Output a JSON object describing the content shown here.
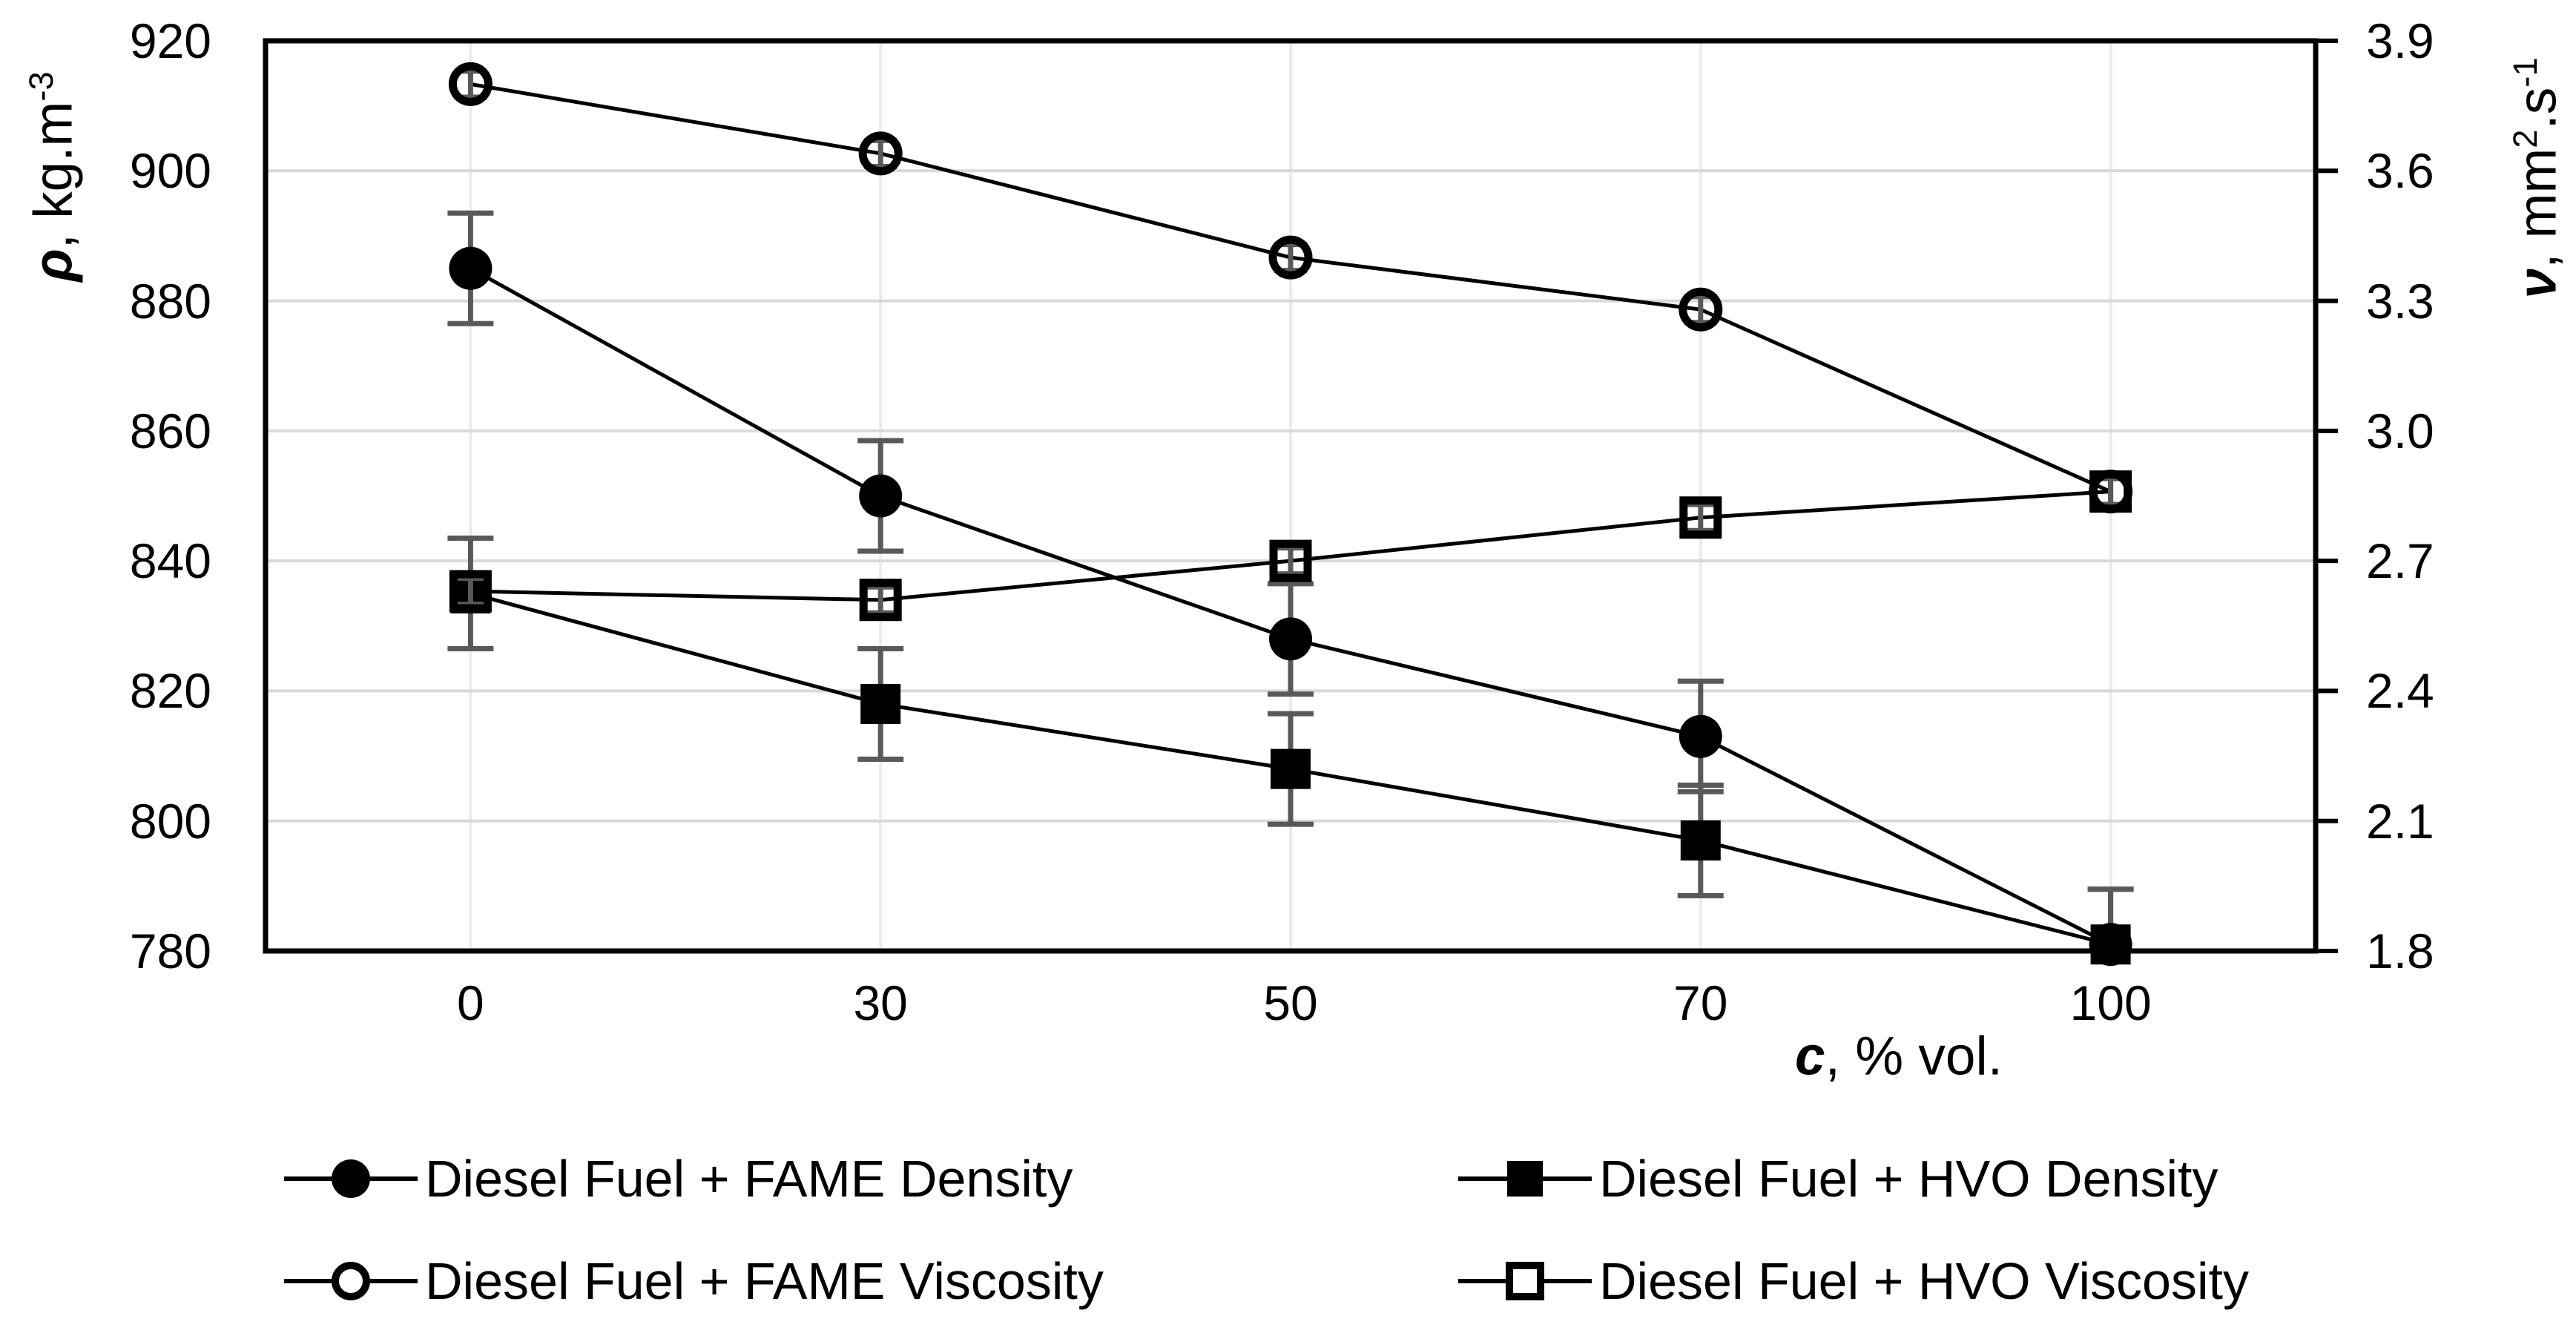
{
  "colors": {
    "series": "#000000",
    "frame": "#000000",
    "gridline_h": "#d9d9d9",
    "gridline_v": "#ebebeb",
    "error_bar": "#595959",
    "text": "#000000",
    "background": "#ffffff"
  },
  "chart_data": {
    "type": "line",
    "categories": [
      0,
      30,
      50,
      70,
      100
    ],
    "x_axis": {
      "title_symbol": "c",
      "title_rest": ", % vol.",
      "tick_labels": [
        "0",
        "30",
        "50",
        "70",
        "100"
      ]
    },
    "left_axis": {
      "title_symbol": "ρ",
      "title_rest": ", kg.m",
      "title_sup": "-3",
      "ticks": [
        "920",
        "900",
        "880",
        "860",
        "840",
        "820",
        "800",
        "780"
      ],
      "range": [
        780,
        920
      ]
    },
    "right_axis": {
      "title_symbol": "ν",
      "title_rest1": ", mm",
      "title_sup1": "2",
      "title_rest2": ".s",
      "title_sup2": "-1",
      "ticks": [
        "3.9",
        "3.6",
        "3.3",
        "3.0",
        "2.7",
        "2.4",
        "2.1",
        "1.8"
      ],
      "range": [
        1.8,
        3.9
      ]
    },
    "grid": true,
    "legend_position": "bottom",
    "series": [
      {
        "name": "Diesel Fuel + FAME Density",
        "axis": "left",
        "marker": "filled-circle",
        "values": [
          885,
          850,
          828,
          813,
          781
        ],
        "error": 8.5
      },
      {
        "name": "Diesel Fuel + HVO Density",
        "axis": "left",
        "marker": "filled-square",
        "values": [
          835,
          818,
          808,
          797,
          781
        ],
        "error": 8.5
      },
      {
        "name": "Diesel Fuel + FAME Viscosity",
        "axis": "right",
        "marker": "open-circle",
        "values": [
          3.8,
          3.64,
          3.4,
          3.28,
          2.86
        ],
        "error": 0.03
      },
      {
        "name": "Diesel Fuel  + HVO Viscosity",
        "axis": "right",
        "marker": "open-square",
        "values": [
          2.63,
          2.61,
          2.7,
          2.8,
          2.86
        ],
        "error": 0.03
      }
    ]
  }
}
